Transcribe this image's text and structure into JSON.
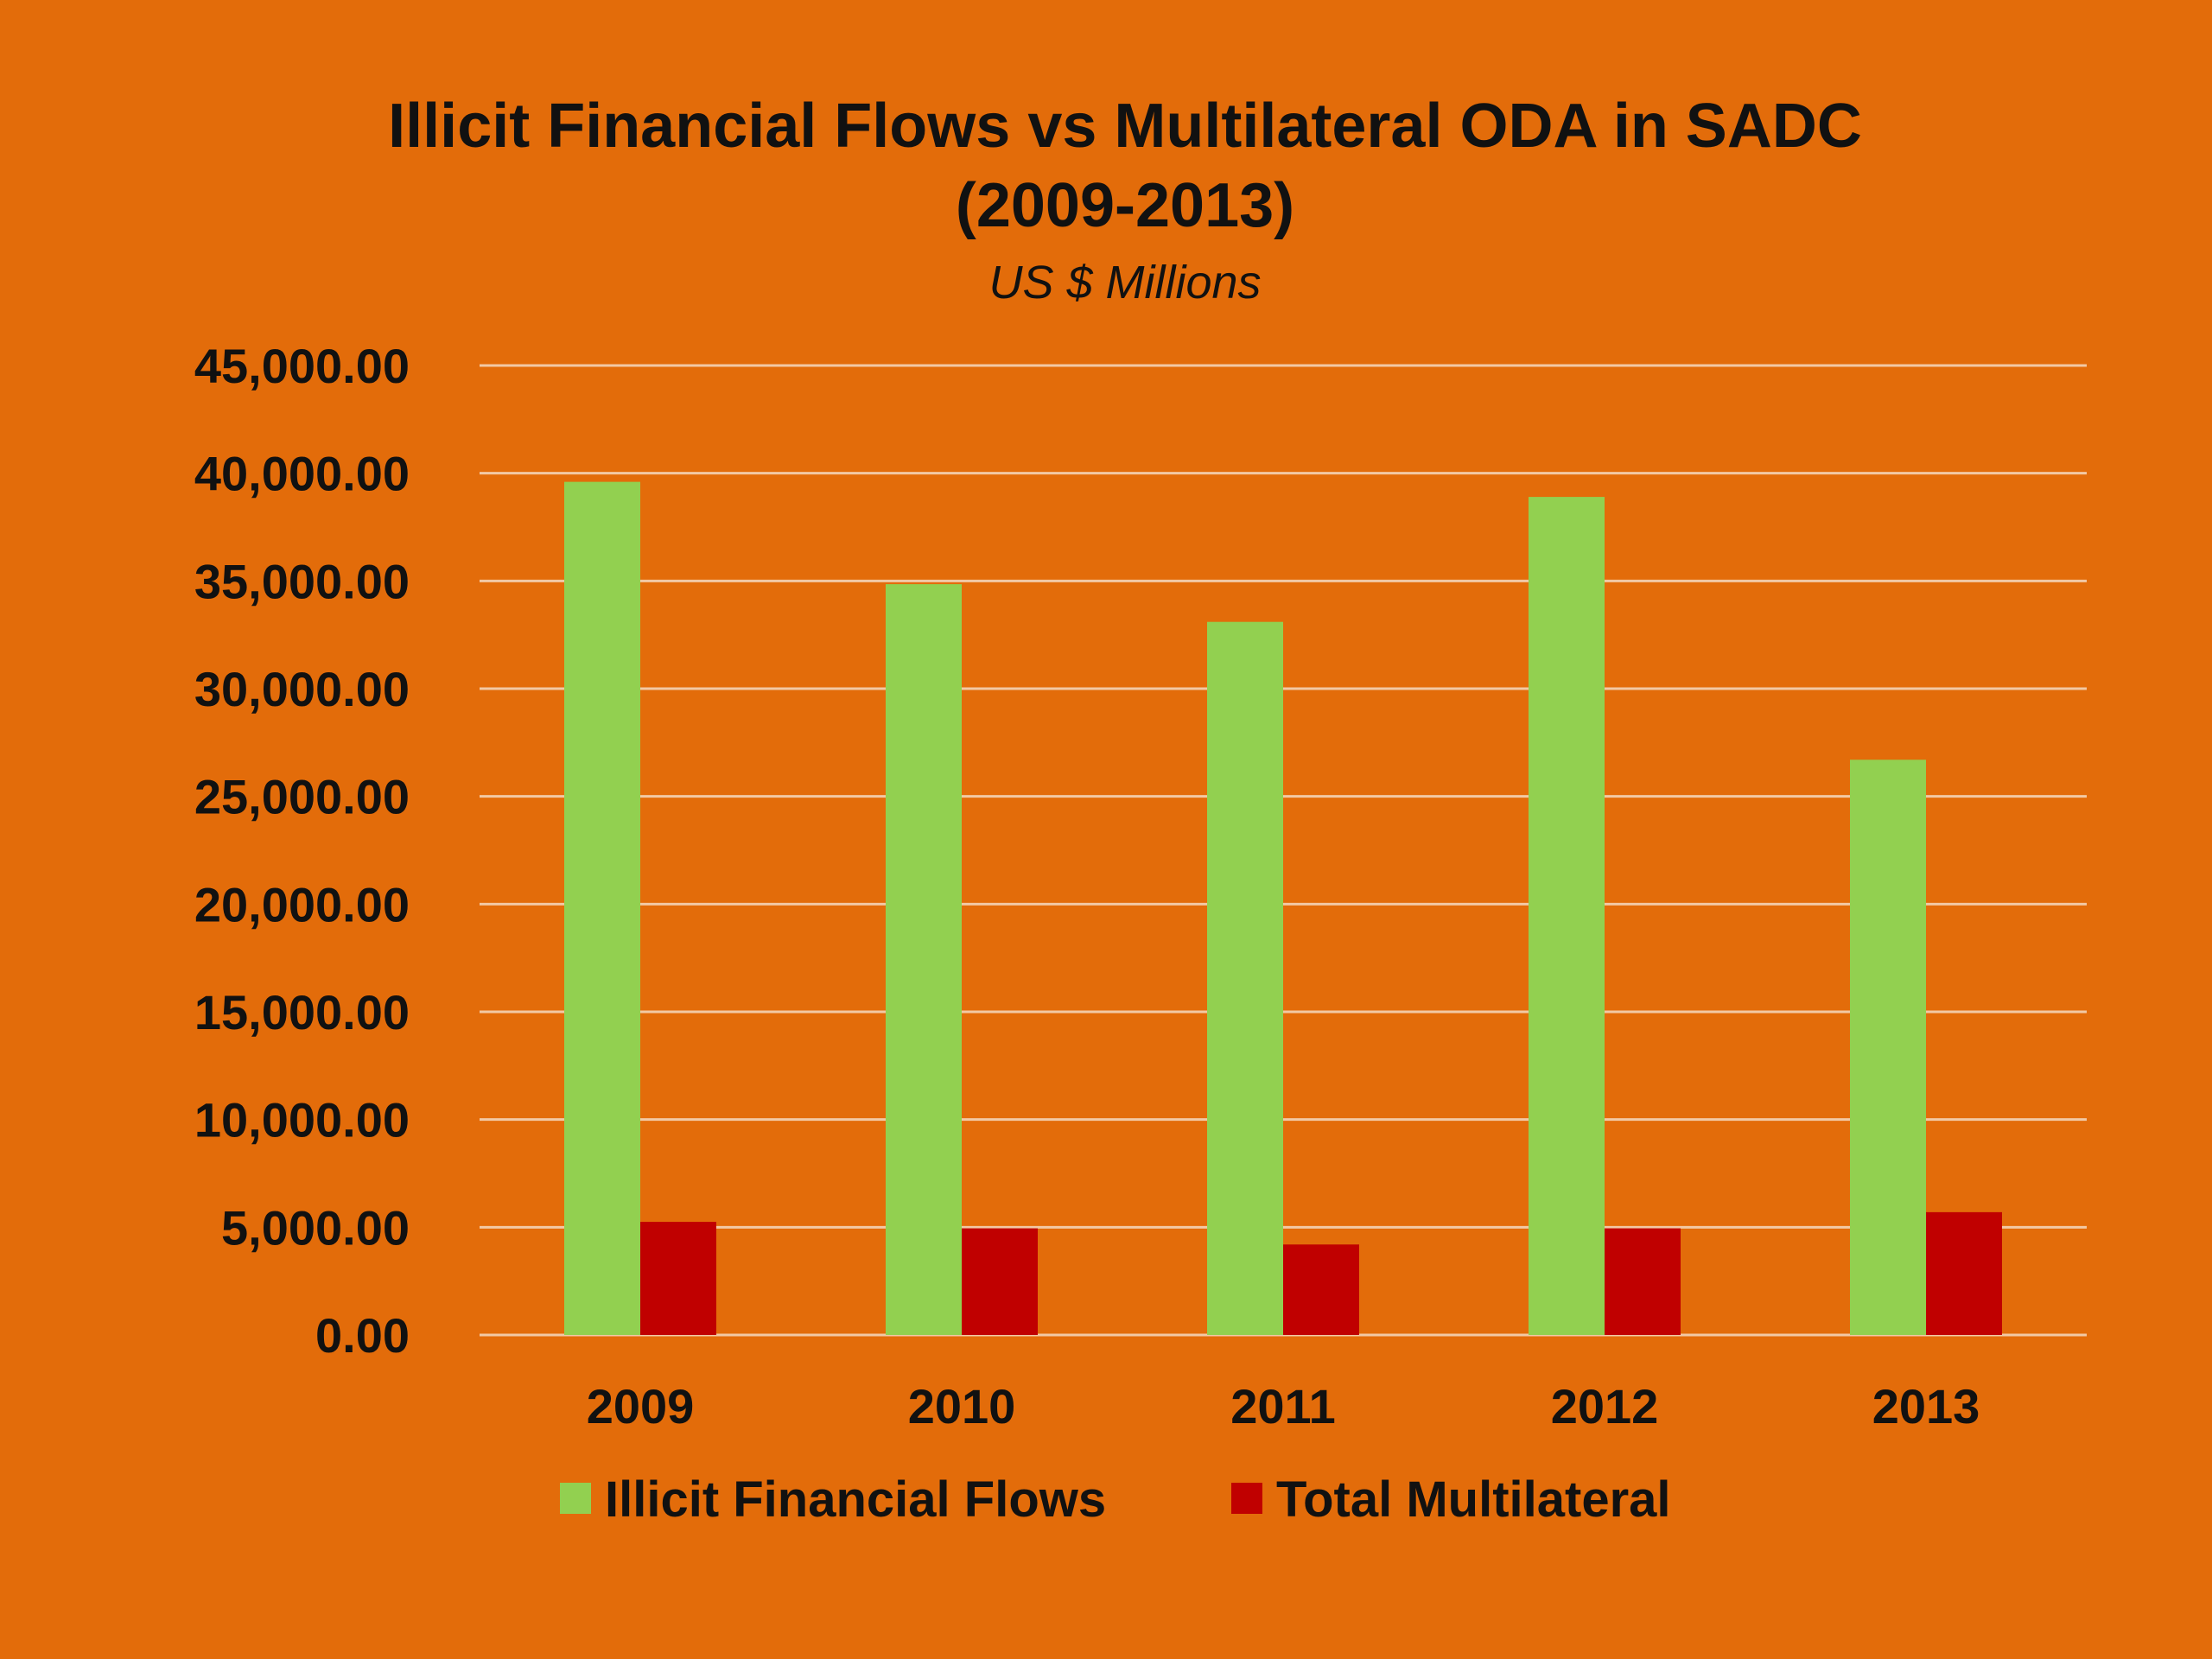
{
  "chart_data": {
    "type": "bar",
    "title_line1": "Illicit Financial Flows vs Multilateral ODA in SADC",
    "title_line2": "(2009-2013)",
    "subtitle": "US $ Millions",
    "xlabel": "",
    "ylabel": "",
    "categories": [
      "2009",
      "2010",
      "2011",
      "2012",
      "2013"
    ],
    "series": [
      {
        "name": "Illicit Financial Flows",
        "color": "#92D050",
        "values": [
          39600,
          34850,
          33100,
          38900,
          26700
        ]
      },
      {
        "name": "Total Multilateral",
        "color": "#C00000",
        "values": [
          5250,
          4950,
          4200,
          4950,
          5700
        ]
      }
    ],
    "ylim": [
      0,
      45000
    ],
    "yticks": [
      0,
      5000,
      10000,
      15000,
      20000,
      25000,
      30000,
      35000,
      40000,
      45000
    ],
    "ytick_labels": [
      "0.00",
      "5,000.00",
      "10,000.00",
      "15,000.00",
      "20,000.00",
      "25,000.00",
      "30,000.00",
      "35,000.00",
      "40,000.00",
      "45,000.00"
    ],
    "grid": true,
    "legend_position": "bottom",
    "background_color": "#E36C0A",
    "gridline_color": "#F2C9A5"
  }
}
